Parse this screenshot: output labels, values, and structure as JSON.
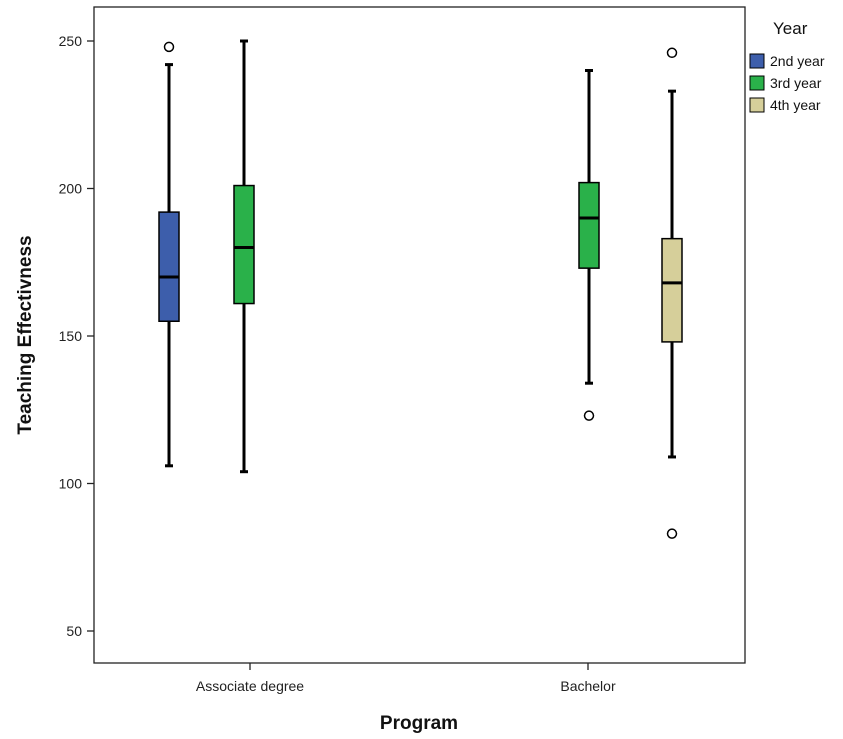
{
  "chart_data": {
    "type": "boxplot",
    "xlabel": "Program",
    "ylabel": "Teaching Effectivness",
    "yticks": [
      50,
      100,
      150,
      200,
      250
    ],
    "ylim": [
      38,
      262
    ],
    "categories": [
      "Associate degree",
      "Bachelor"
    ],
    "legend": {
      "title": "Year",
      "position": "right",
      "entries": [
        {
          "name": "2nd year",
          "color": "#3d5eab"
        },
        {
          "name": "3rd year",
          "color": "#2ab14a"
        },
        {
          "name": "4th year",
          "color": "#d6cf9a"
        }
      ]
    },
    "boxes": [
      {
        "category": "Associate degree",
        "series": "2nd year",
        "color": "#3d5eab",
        "whisker_low": 106,
        "q1": 155,
        "median": 170,
        "q3": 192,
        "whisker_high": 242,
        "outliers": [
          248
        ]
      },
      {
        "category": "Associate degree",
        "series": "3rd year",
        "color": "#2ab14a",
        "whisker_low": 104,
        "q1": 161,
        "median": 180,
        "q3": 201,
        "whisker_high": 250,
        "outliers": []
      },
      {
        "category": "Bachelor",
        "series": "3rd year",
        "color": "#2ab14a",
        "whisker_low": 134,
        "q1": 173,
        "median": 190,
        "q3": 202,
        "whisker_high": 240,
        "outliers": [
          123
        ]
      },
      {
        "category": "Bachelor",
        "series": "4th year",
        "color": "#d6cf9a",
        "whisker_low": 109,
        "q1": 148,
        "median": 168,
        "q3": 183,
        "whisker_high": 233,
        "outliers": [
          246,
          83
        ]
      }
    ]
  }
}
